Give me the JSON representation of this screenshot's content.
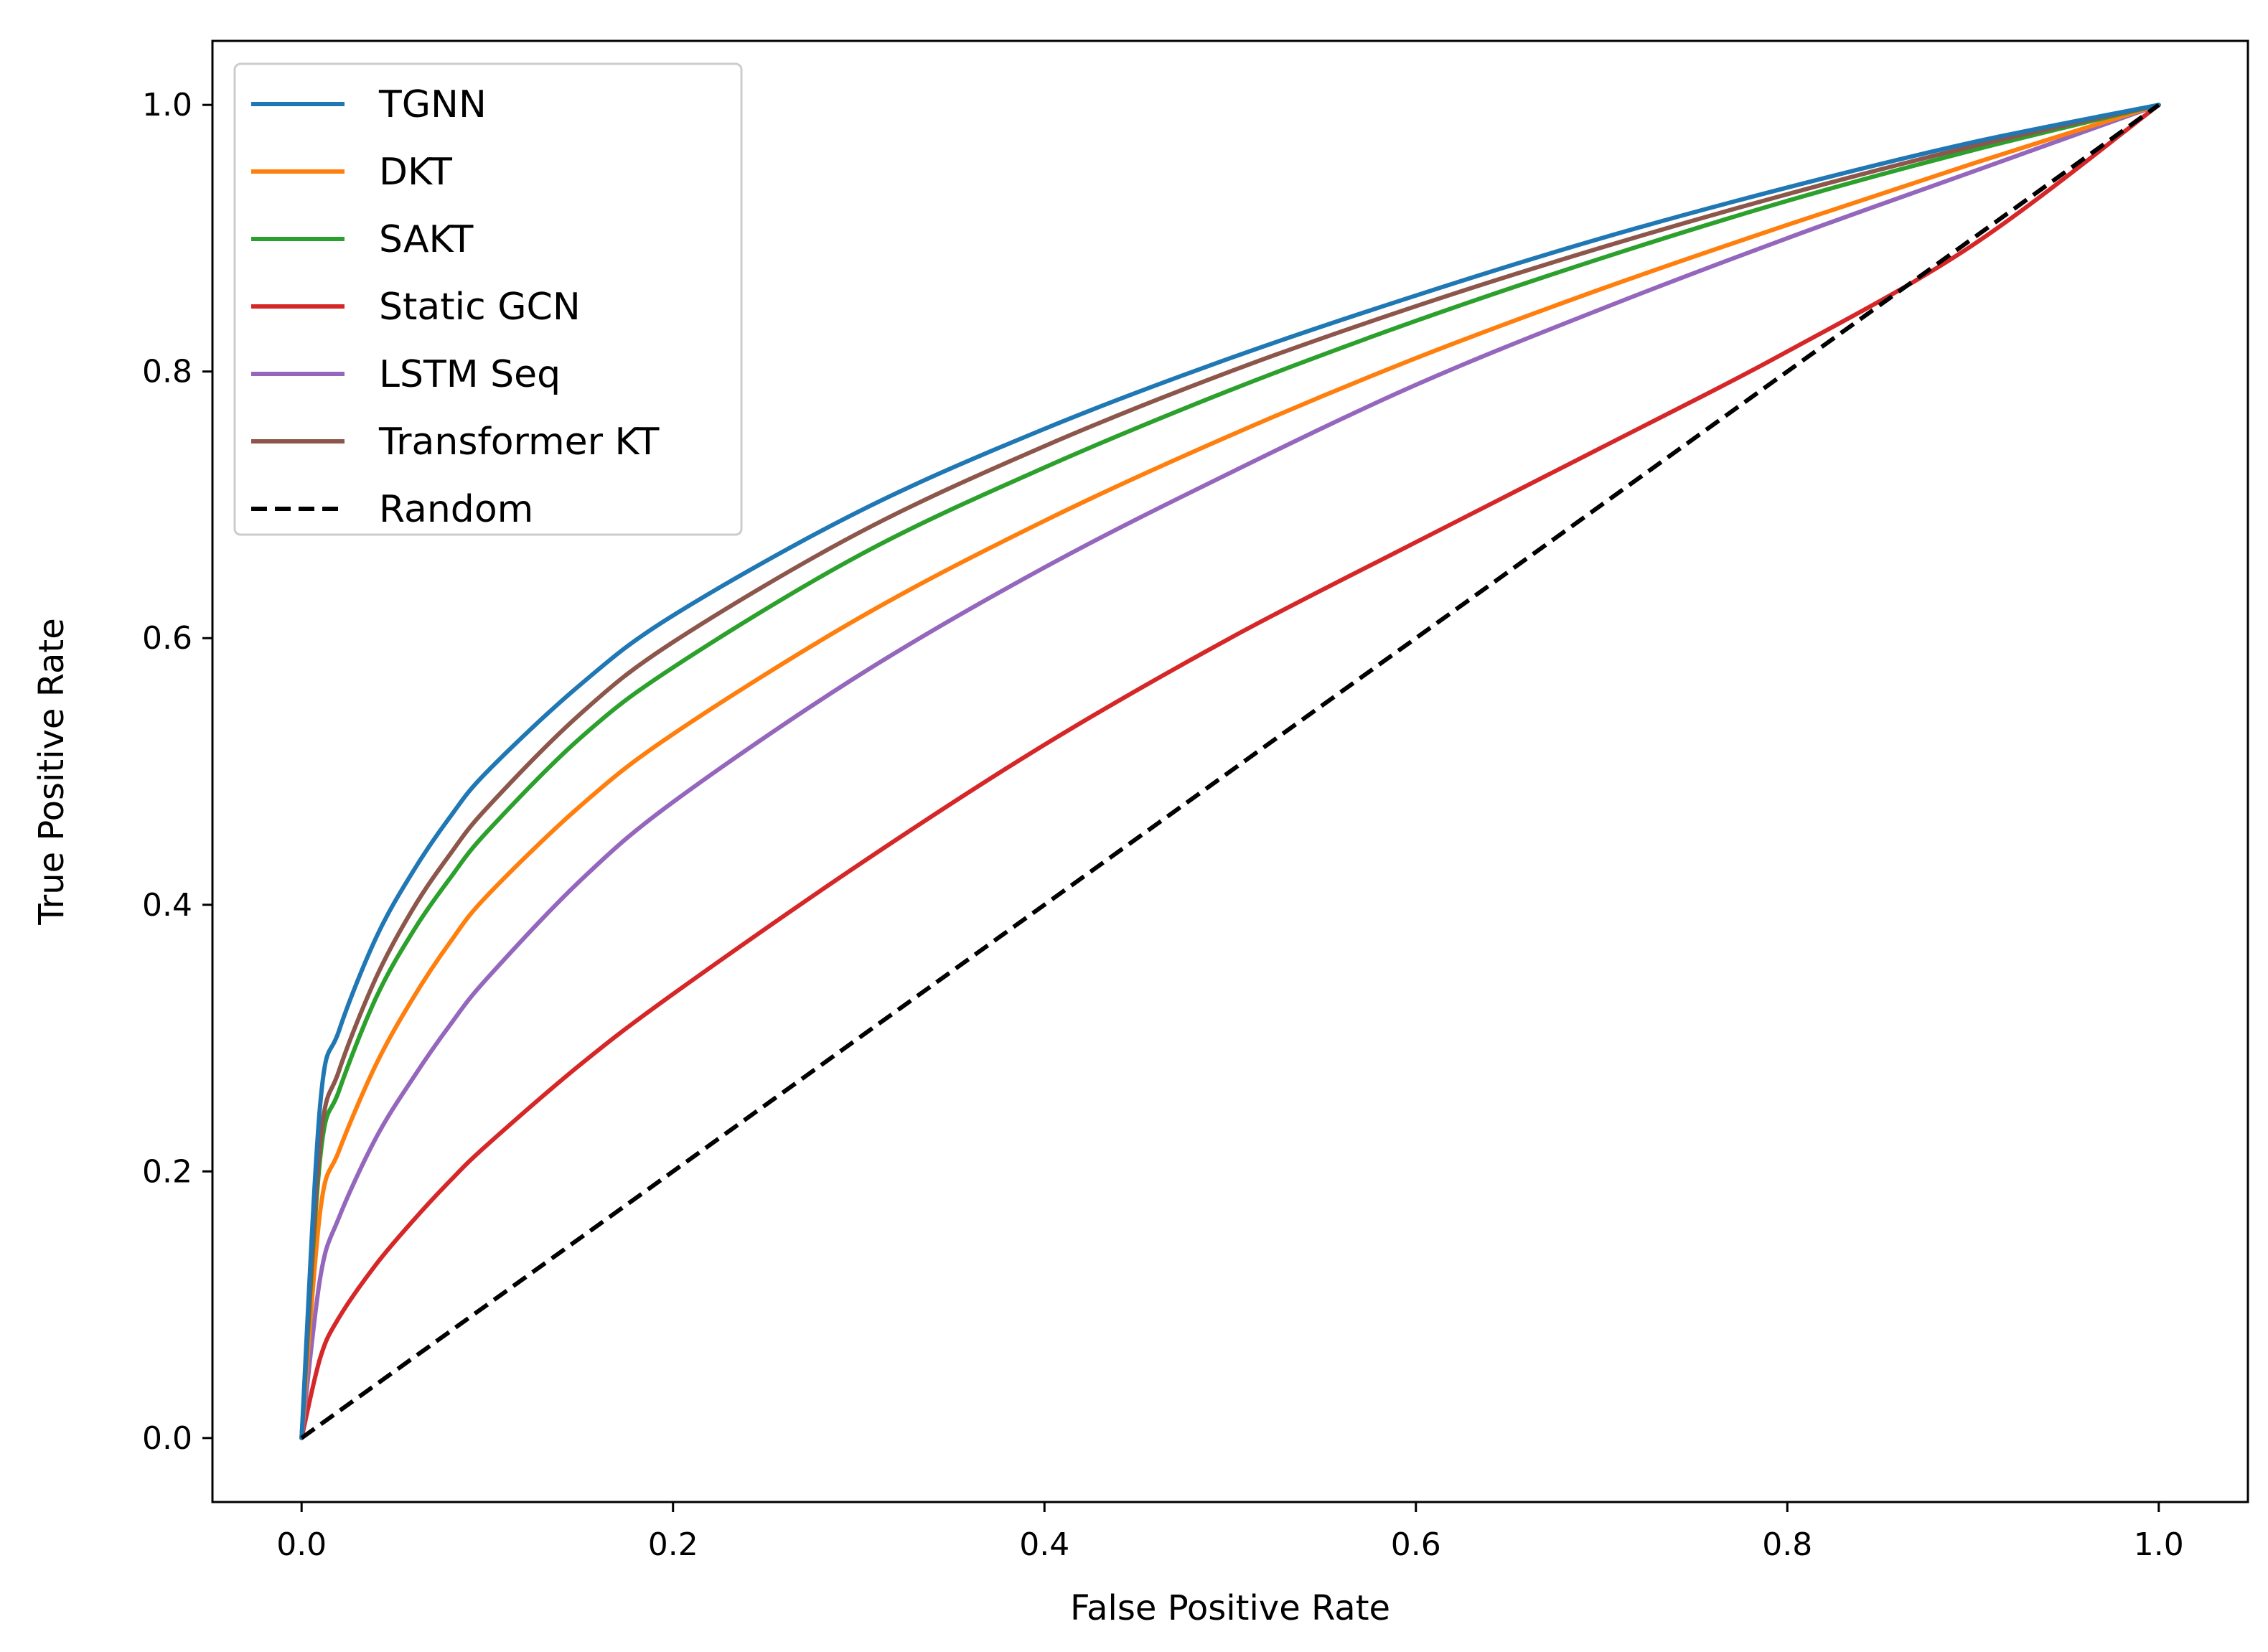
{
  "chart_data": {
    "type": "line",
    "title": "",
    "xlabel": "False Positive Rate",
    "ylabel": "True Positive Rate",
    "xlim": [
      -0.048,
      1.048
    ],
    "ylim": [
      -0.048,
      1.048
    ],
    "xticks": [
      0.0,
      0.2,
      0.4,
      0.6,
      0.8,
      1.0
    ],
    "yticks": [
      0.0,
      0.2,
      0.4,
      0.6,
      0.8,
      1.0
    ],
    "xtick_labels": [
      "0.0",
      "0.2",
      "0.4",
      "0.6",
      "0.8",
      "1.0"
    ],
    "ytick_labels": [
      "0.0",
      "0.2",
      "0.4",
      "0.6",
      "0.8",
      "1.0"
    ],
    "grid": false,
    "legend_position": "top-left",
    "series": [
      {
        "name": "TGNN",
        "color": "#1f77b4",
        "dash": "solid",
        "x": [
          0.0,
          0.01,
          0.02,
          0.04,
          0.06,
          0.08,
          0.1,
          0.15,
          0.2,
          0.3,
          0.4,
          0.5,
          0.6,
          0.7,
          0.8,
          0.9,
          1.0
        ],
        "y": [
          0.0,
          0.25,
          0.305,
          0.375,
          0.425,
          0.466,
          0.5,
          0.565,
          0.617,
          0.695,
          0.757,
          0.81,
          0.857,
          0.9,
          0.938,
          0.972,
          1.0
        ]
      },
      {
        "name": "DKT",
        "color": "#ff7f0e",
        "dash": "solid",
        "x": [
          0.0,
          0.01,
          0.02,
          0.04,
          0.06,
          0.08,
          0.1,
          0.15,
          0.2,
          0.3,
          0.4,
          0.5,
          0.6,
          0.7,
          0.8,
          0.9,
          1.0
        ],
        "y": [
          0.0,
          0.17,
          0.215,
          0.28,
          0.33,
          0.372,
          0.407,
          0.474,
          0.528,
          0.615,
          0.688,
          0.752,
          0.81,
          0.862,
          0.91,
          0.956,
          1.0
        ]
      },
      {
        "name": "SAKT",
        "color": "#2ca02c",
        "dash": "solid",
        "x": [
          0.0,
          0.01,
          0.02,
          0.04,
          0.06,
          0.08,
          0.1,
          0.15,
          0.2,
          0.3,
          0.4,
          0.5,
          0.6,
          0.7,
          0.8,
          0.9,
          1.0
        ],
        "y": [
          0.0,
          0.21,
          0.26,
          0.33,
          0.38,
          0.42,
          0.455,
          0.525,
          0.578,
          0.662,
          0.728,
          0.786,
          0.838,
          0.885,
          0.928,
          0.966,
          1.0
        ]
      },
      {
        "name": "Static GCN",
        "color": "#d62728",
        "dash": "solid",
        "x": [
          0.0,
          0.01,
          0.02,
          0.04,
          0.06,
          0.08,
          0.1,
          0.15,
          0.2,
          0.3,
          0.4,
          0.5,
          0.6,
          0.7,
          0.8,
          0.9,
          1.0
        ],
        "y": [
          0.0,
          0.06,
          0.09,
          0.13,
          0.163,
          0.193,
          0.22,
          0.28,
          0.333,
          0.43,
          0.52,
          0.6,
          0.672,
          0.743,
          0.815,
          0.895,
          1.0
        ]
      },
      {
        "name": "LSTM Seq",
        "color": "#9467bd",
        "dash": "solid",
        "x": [
          0.0,
          0.01,
          0.02,
          0.04,
          0.06,
          0.08,
          0.1,
          0.15,
          0.2,
          0.3,
          0.4,
          0.5,
          0.6,
          0.7,
          0.8,
          0.9,
          1.0
        ],
        "y": [
          0.0,
          0.12,
          0.165,
          0.225,
          0.27,
          0.31,
          0.345,
          0.418,
          0.477,
          0.572,
          0.653,
          0.724,
          0.79,
          0.847,
          0.9,
          0.95,
          1.0
        ]
      },
      {
        "name": "Transformer KT",
        "color": "#8c564b",
        "dash": "solid",
        "x": [
          0.0,
          0.01,
          0.02,
          0.04,
          0.06,
          0.08,
          0.1,
          0.15,
          0.2,
          0.3,
          0.4,
          0.5,
          0.6,
          0.7,
          0.8,
          0.9,
          1.0
        ],
        "y": [
          0.0,
          0.22,
          0.275,
          0.345,
          0.397,
          0.438,
          0.473,
          0.543,
          0.597,
          0.679,
          0.744,
          0.8,
          0.849,
          0.893,
          0.933,
          0.969,
          1.0
        ]
      },
      {
        "name": "Random",
        "color": "#000000",
        "dash": "dashed",
        "x": [
          0.0,
          1.0
        ],
        "y": [
          0.0,
          1.0
        ]
      }
    ]
  }
}
